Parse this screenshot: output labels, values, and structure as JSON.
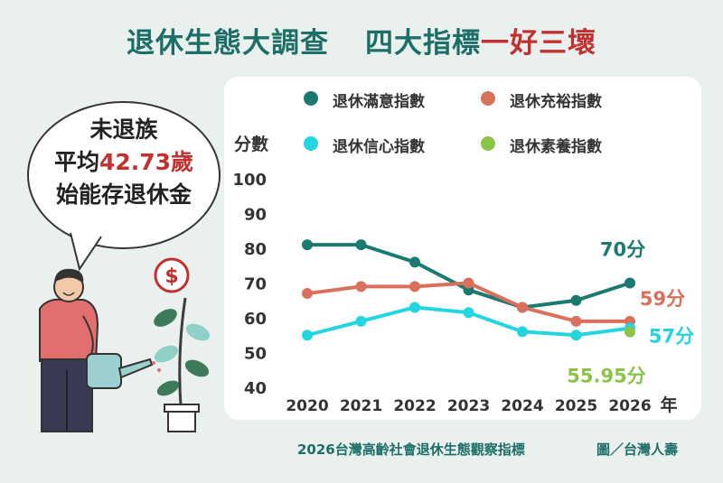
{
  "header": {
    "title_part1": "退休生態大調查",
    "title_part2": "四大指標",
    "title_highlight": "一好三壞"
  },
  "bubble": {
    "line1": "未退族",
    "line2_prefix": "平均",
    "line2_highlight": "42.73歲",
    "line3": "始能存退休金"
  },
  "footer": {
    "source": "2026台灣高齡社會退休生態觀察指標",
    "credit": "圖／台灣人壽"
  },
  "colors": {
    "teal": "#1b7a70",
    "salmon": "#d9705c",
    "cyan": "#22d5e0",
    "green": "#8cc44a"
  },
  "chart_data": {
    "type": "line",
    "ylabel": "分數",
    "xlabel": "年",
    "ylim": [
      40,
      100
    ],
    "yticks": [
      100,
      90,
      80,
      70,
      60,
      50,
      40
    ],
    "categories": [
      "2020",
      "2021",
      "2022",
      "2023",
      "2024",
      "2025",
      "2026"
    ],
    "series": [
      {
        "name": "退休滿意指數",
        "color": "#1b7a70",
        "values": [
          81,
          81,
          76,
          68,
          63,
          65,
          70
        ],
        "end_label": "70分"
      },
      {
        "name": "退休充裕指數",
        "color": "#d9705c",
        "values": [
          67,
          69,
          69,
          70,
          63,
          59,
          59
        ],
        "end_label": "59分"
      },
      {
        "name": "退休信心指數",
        "color": "#22d5e0",
        "values": [
          55,
          59,
          63,
          61.5,
          56,
          55,
          57
        ],
        "end_label": "57分"
      },
      {
        "name": "退休素養指數",
        "color": "#8cc44a",
        "values": [
          null,
          null,
          null,
          null,
          null,
          null,
          55.95
        ],
        "end_label": "55.95分"
      }
    ]
  }
}
